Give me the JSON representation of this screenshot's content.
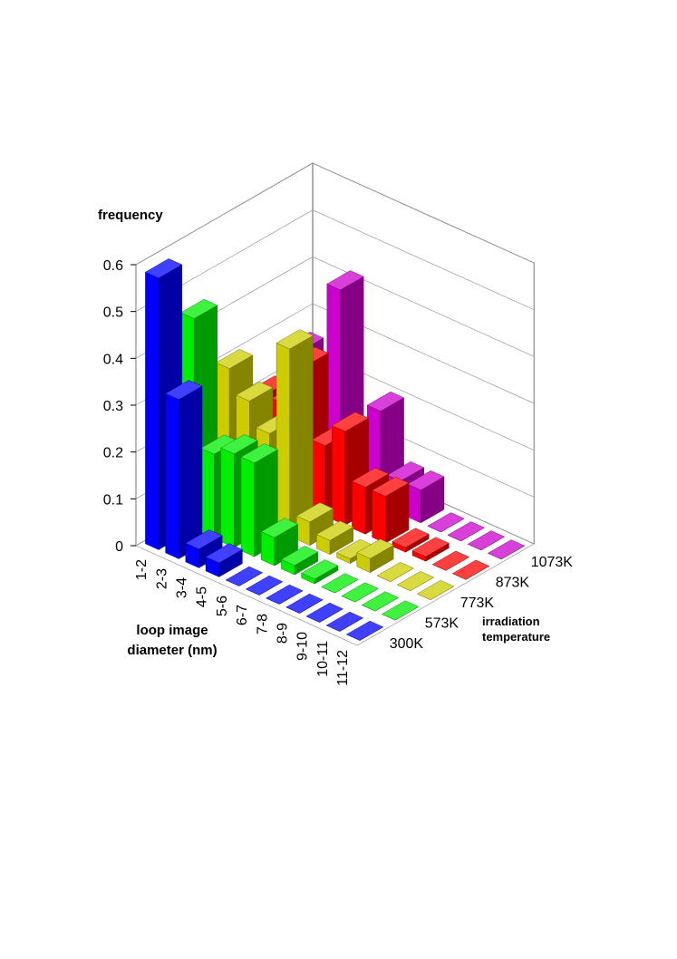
{
  "chart_data": {
    "type": "bar3d",
    "zlabel": "frequency",
    "xlabel": [
      "loop image",
      "diameter (nm)"
    ],
    "ylabel": [
      "irradiation",
      "temperature"
    ],
    "categories": [
      "1-2",
      "2-3",
      "3-4",
      "4-5",
      "5-6",
      "6-7",
      "7-8",
      "8-9",
      "9-10",
      "10-11",
      "11-12"
    ],
    "series": [
      {
        "name": "300K",
        "color": "#0000ff",
        "values": [
          0.58,
          0.34,
          0.04,
          0.03,
          0,
          0,
          0,
          0,
          0,
          0,
          0
        ]
      },
      {
        "name": "573K",
        "color": "#00ee00",
        "values": [
          0.45,
          0.18,
          0.2,
          0.2,
          0.06,
          0.02,
          0.01,
          0,
          0,
          0,
          0
        ]
      },
      {
        "name": "773K",
        "color": "#cccc00",
        "values": [
          0.3,
          0.25,
          0.2,
          0.4,
          0.05,
          0.03,
          0.01,
          0.03,
          0,
          0,
          0
        ]
      },
      {
        "name": "873K",
        "color": "#ff0000",
        "values": [
          0.2,
          0.2,
          0.3,
          0.15,
          0.2,
          0.1,
          0.1,
          0.01,
          0.01,
          0,
          0
        ]
      },
      {
        "name": "1073K",
        "color": "#cc00cc",
        "values": [
          0.25,
          0.2,
          0.42,
          0.12,
          0.2,
          0.07,
          0.07,
          0,
          0,
          0,
          0
        ]
      }
    ],
    "zlim": [
      0,
      0.6
    ],
    "zticks": [
      0,
      0.1,
      0.2,
      0.3,
      0.4,
      0.5,
      0.6
    ],
    "grid": true
  }
}
